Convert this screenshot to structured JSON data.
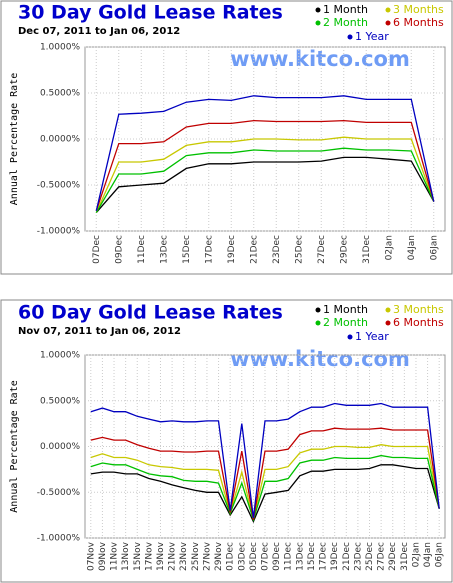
{
  "chart_data": [
    {
      "type": "line",
      "title": "30 Day Gold Lease Rates",
      "subtitle": "Dec 07, 2011 to Jan 06, 2012",
      "watermark": "www.kitco.com",
      "y_label": "Annual Percentage Rate",
      "categories": [
        "07Dec",
        "09Dec",
        "11Dec",
        "13Dec",
        "15Dec",
        "17Dec",
        "19Dec",
        "21Dec",
        "23Dec",
        "25Dec",
        "27Dec",
        "29Dec",
        "31Dec",
        "02Jan",
        "04Jan",
        "06Jan"
      ],
      "ylim": [
        -1,
        1
      ],
      "yticks": [
        {
          "value": 1,
          "label": "1.0000%"
        },
        {
          "value": 0.5,
          "label": "0.5000%"
        },
        {
          "value": 0,
          "label": "0.0000%"
        },
        {
          "value": -0.5,
          "label": "-0.5000%"
        },
        {
          "value": -1,
          "label": "-1.0000%"
        }
      ],
      "grid": true,
      "series": [
        {
          "name": "1 Month",
          "color": "#000000",
          "values": [
            -0.8,
            -0.52,
            -0.5,
            -0.48,
            -0.32,
            -0.27,
            -0.27,
            -0.25,
            -0.25,
            -0.25,
            -0.24,
            -0.2,
            -0.2,
            -0.22,
            -0.24,
            -0.68
          ]
        },
        {
          "name": "3 Months",
          "color": "#c8c800",
          "values": [
            -0.8,
            -0.25,
            -0.25,
            -0.22,
            -0.07,
            -0.03,
            -0.03,
            0.0,
            0.0,
            -0.01,
            -0.01,
            0.02,
            0.0,
            0.0,
            0.0,
            -0.68
          ]
        },
        {
          "name": "2 Month",
          "color": "#00c000",
          "values": [
            -0.8,
            -0.38,
            -0.38,
            -0.35,
            -0.18,
            -0.15,
            -0.15,
            -0.12,
            -0.13,
            -0.13,
            -0.13,
            -0.1,
            -0.12,
            -0.12,
            -0.13,
            -0.68
          ]
        },
        {
          "name": "6 Months",
          "color": "#c00000",
          "values": [
            -0.78,
            -0.05,
            -0.05,
            -0.03,
            0.13,
            0.17,
            0.17,
            0.2,
            0.19,
            0.19,
            0.19,
            0.2,
            0.18,
            0.18,
            0.18,
            -0.68
          ]
        },
        {
          "name": "1 Year",
          "color": "#0000c0",
          "values": [
            -0.78,
            0.27,
            0.28,
            0.3,
            0.4,
            0.43,
            0.42,
            0.47,
            0.45,
            0.45,
            0.45,
            0.47,
            0.43,
            0.43,
            0.43,
            -0.68
          ]
        }
      ]
    },
    {
      "type": "line",
      "title": "60 Day Gold Lease Rates",
      "subtitle": "Nov 07, 2011 to Jan 06, 2012",
      "watermark": "www.kitco.com",
      "y_label": "Annual Percentage Rate",
      "categories": [
        "07Nov",
        "09Nov",
        "11Nov",
        "13Nov",
        "15Nov",
        "17Nov",
        "19Nov",
        "21Nov",
        "23Nov",
        "25Nov",
        "27Nov",
        "29Nov",
        "01Dec",
        "03Dec",
        "05Dec",
        "07Dec",
        "09Dec",
        "11Dec",
        "13Dec",
        "15Dec",
        "17Dec",
        "19Dec",
        "21Dec",
        "23Dec",
        "25Dec",
        "27Dec",
        "29Dec",
        "31Dec",
        "02Jan",
        "04Jan",
        "06Jan"
      ],
      "ylim": [
        -1,
        1
      ],
      "yticks": [
        {
          "value": 1,
          "label": "1.0000%"
        },
        {
          "value": 0.5,
          "label": "0.5000%"
        },
        {
          "value": 0,
          "label": "0.0000%"
        },
        {
          "value": -0.5,
          "label": "-0.5000%"
        },
        {
          "value": -1,
          "label": "-1.0000%"
        }
      ],
      "grid": true,
      "series": [
        {
          "name": "1 Month",
          "color": "#000000",
          "values": [
            -0.3,
            -0.28,
            -0.28,
            -0.3,
            -0.3,
            -0.35,
            -0.38,
            -0.42,
            -0.45,
            -0.48,
            -0.5,
            -0.5,
            -0.75,
            -0.55,
            -0.82,
            -0.52,
            -0.5,
            -0.48,
            -0.32,
            -0.27,
            -0.27,
            -0.25,
            -0.25,
            -0.25,
            -0.24,
            -0.2,
            -0.2,
            -0.22,
            -0.24,
            -0.24,
            -0.68
          ]
        },
        {
          "name": "3 Months",
          "color": "#c8c800",
          "values": [
            -0.12,
            -0.08,
            -0.12,
            -0.12,
            -0.15,
            -0.2,
            -0.22,
            -0.23,
            -0.25,
            -0.25,
            -0.25,
            -0.26,
            -0.73,
            -0.28,
            -0.8,
            -0.25,
            -0.25,
            -0.22,
            -0.07,
            -0.03,
            -0.03,
            0.0,
            0.0,
            -0.01,
            -0.01,
            0.02,
            0.0,
            0.0,
            0.0,
            0.0,
            -0.68
          ]
        },
        {
          "name": "2 Month",
          "color": "#00c000",
          "values": [
            -0.22,
            -0.18,
            -0.2,
            -0.2,
            -0.25,
            -0.3,
            -0.32,
            -0.33,
            -0.37,
            -0.38,
            -0.38,
            -0.4,
            -0.73,
            -0.4,
            -0.8,
            -0.38,
            -0.38,
            -0.35,
            -0.18,
            -0.15,
            -0.15,
            -0.12,
            -0.13,
            -0.13,
            -0.13,
            -0.1,
            -0.12,
            -0.12,
            -0.13,
            -0.13,
            -0.68
          ]
        },
        {
          "name": "6 Months",
          "color": "#c00000",
          "values": [
            0.07,
            0.1,
            0.07,
            0.07,
            0.02,
            -0.02,
            -0.05,
            -0.05,
            -0.06,
            -0.06,
            -0.05,
            -0.05,
            -0.72,
            -0.05,
            -0.8,
            -0.05,
            -0.05,
            -0.03,
            0.13,
            0.17,
            0.17,
            0.2,
            0.19,
            0.19,
            0.19,
            0.2,
            0.18,
            0.18,
            0.18,
            0.18,
            -0.68
          ]
        },
        {
          "name": "1 Year",
          "color": "#0000c0",
          "values": [
            0.38,
            0.42,
            0.38,
            0.38,
            0.33,
            0.3,
            0.27,
            0.28,
            0.27,
            0.27,
            0.28,
            0.28,
            -0.7,
            0.25,
            -0.78,
            0.28,
            0.28,
            0.3,
            0.38,
            0.43,
            0.43,
            0.47,
            0.45,
            0.45,
            0.45,
            0.47,
            0.43,
            0.43,
            0.43,
            0.43,
            -0.68
          ]
        }
      ]
    }
  ]
}
